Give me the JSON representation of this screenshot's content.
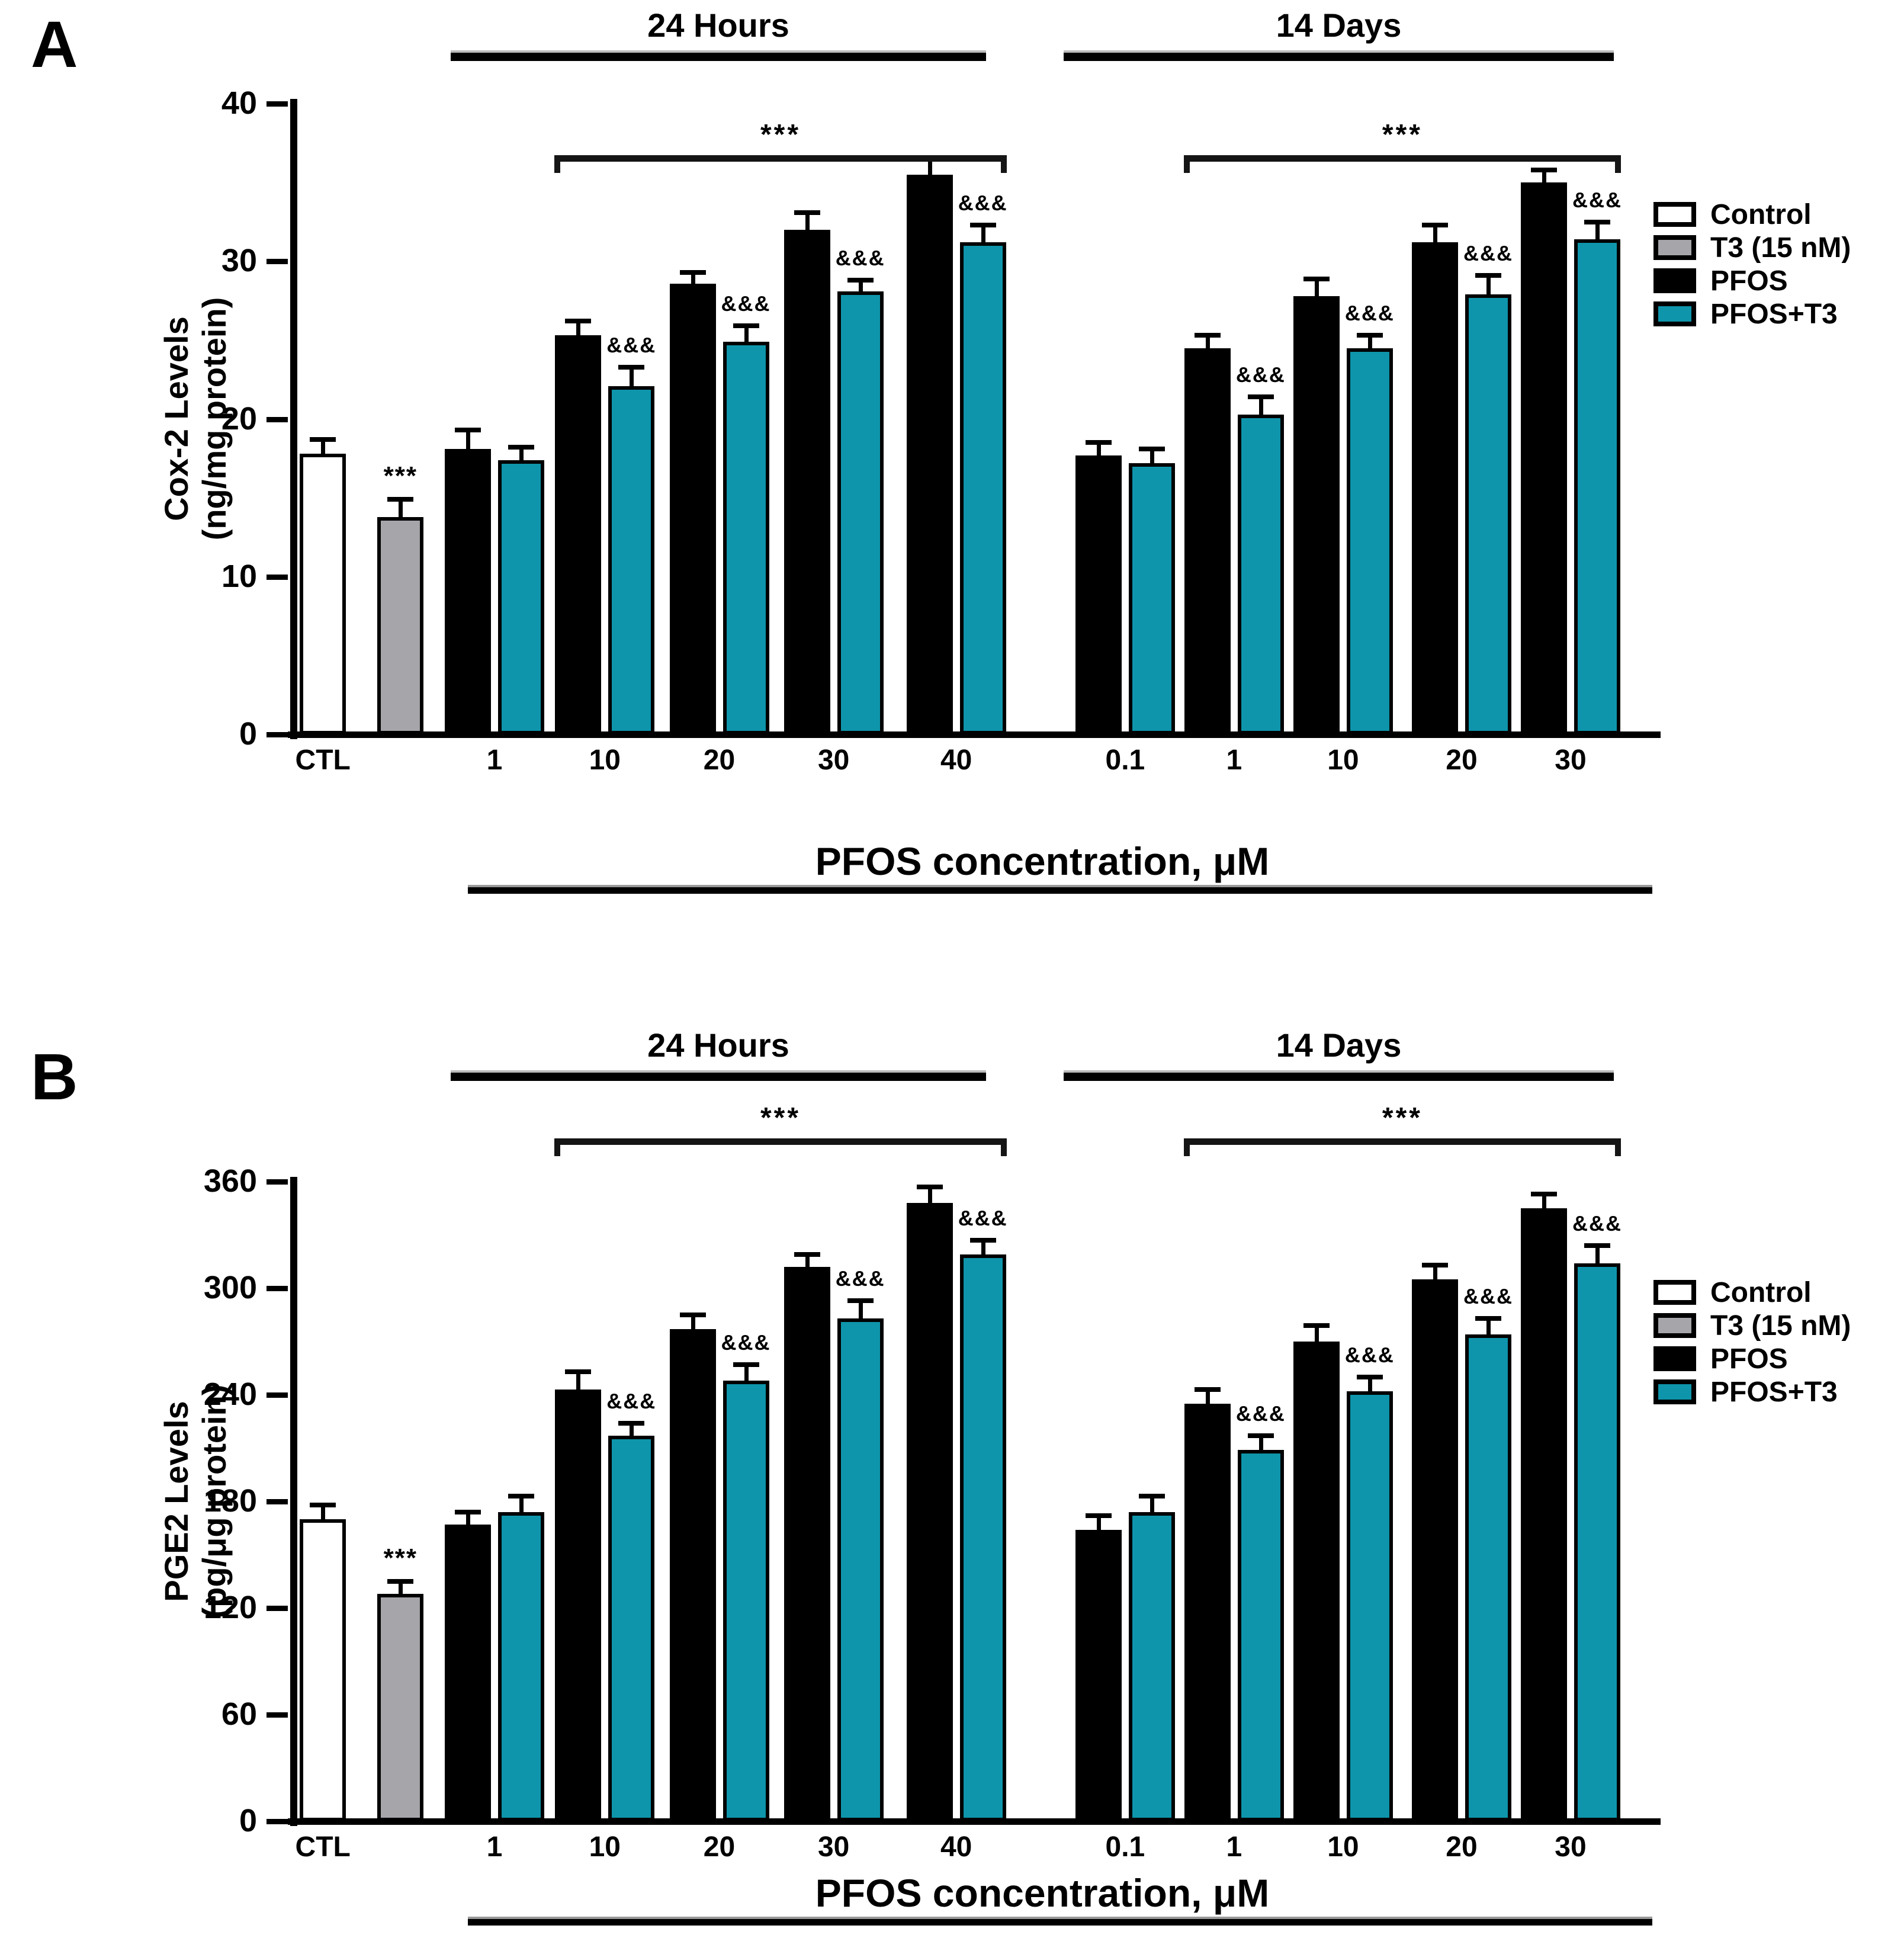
{
  "chart_data": [
    {
      "type": "bar",
      "panel_label": "A",
      "ylabel_line1": "Cox-2 Levels",
      "ylabel_line2": "(ng/mg protein)",
      "xlabel": "PFOS concentration, μM",
      "ylim": [
        0,
        40
      ],
      "yticks": [
        "0",
        "10",
        "20",
        "30",
        "40"
      ],
      "section_headers": [
        {
          "label": "24 Hours"
        },
        {
          "label": "14 Days"
        }
      ],
      "sig_brackets": [
        {
          "label": "***",
          "section": "24 Hours",
          "from_x": "10",
          "to_x": "40"
        },
        {
          "label": "***",
          "section": "14 Days",
          "from_x": "1",
          "to_x": "30"
        }
      ],
      "legend": [
        {
          "label": "Control",
          "color": "#ffffff"
        },
        {
          "label": "T3 (15 nM)",
          "color": "#a5a5aa"
        },
        {
          "label": "PFOS",
          "color": "#000000"
        },
        {
          "label": "PFOS+T3",
          "color": "#0e95ab"
        }
      ],
      "groups": [
        {
          "tick": "CTL",
          "section": "",
          "bars": [
            {
              "series": "Control",
              "value": 17.8,
              "err": 0.9,
              "annotation": ""
            }
          ]
        },
        {
          "tick": "",
          "section": "",
          "bars": [
            {
              "series": "T3 (15 nM)",
              "value": 13.8,
              "err": 1.1,
              "annotation": "***"
            }
          ]
        },
        {
          "tick": "1",
          "section": "24 Hours",
          "bars": [
            {
              "series": "PFOS",
              "value": 18.1,
              "err": 1.2,
              "annotation": ""
            },
            {
              "series": "PFOS+T3",
              "value": 17.4,
              "err": 0.8,
              "annotation": ""
            }
          ]
        },
        {
          "tick": "10",
          "section": "24 Hours",
          "bars": [
            {
              "series": "PFOS",
              "value": 25.3,
              "err": 0.9,
              "annotation": ""
            },
            {
              "series": "PFOS+T3",
              "value": 22.1,
              "err": 1.2,
              "annotation": "&&&"
            }
          ]
        },
        {
          "tick": "20",
          "section": "24 Hours",
          "bars": [
            {
              "series": "PFOS",
              "value": 28.6,
              "err": 0.7,
              "annotation": ""
            },
            {
              "series": "PFOS+T3",
              "value": 24.9,
              "err": 1.0,
              "annotation": "&&&"
            }
          ]
        },
        {
          "tick": "30",
          "section": "24 Hours",
          "bars": [
            {
              "series": "PFOS",
              "value": 32.0,
              "err": 1.1,
              "annotation": ""
            },
            {
              "series": "PFOS+T3",
              "value": 28.1,
              "err": 0.7,
              "annotation": "&&&"
            }
          ]
        },
        {
          "tick": "40",
          "section": "24 Hours",
          "bars": [
            {
              "series": "PFOS",
              "value": 35.5,
              "err": 1.1,
              "annotation": ""
            },
            {
              "series": "PFOS+T3",
              "value": 31.2,
              "err": 1.1,
              "annotation": "&&&"
            }
          ]
        },
        {
          "tick": "0.1",
          "section": "14 Days",
          "bars": [
            {
              "series": "PFOS",
              "value": 17.7,
              "err": 0.8,
              "annotation": ""
            },
            {
              "series": "PFOS+T3",
              "value": 17.2,
              "err": 0.9,
              "annotation": ""
            }
          ]
        },
        {
          "tick": "1",
          "section": "14 Days",
          "bars": [
            {
              "series": "PFOS",
              "value": 24.5,
              "err": 0.8,
              "annotation": ""
            },
            {
              "series": "PFOS+T3",
              "value": 20.3,
              "err": 1.1,
              "annotation": "&&&"
            }
          ]
        },
        {
          "tick": "10",
          "section": "14 Days",
          "bars": [
            {
              "series": "PFOS",
              "value": 27.8,
              "err": 1.1,
              "annotation": ""
            },
            {
              "series": "PFOS+T3",
              "value": 24.5,
              "err": 0.8,
              "annotation": "&&&"
            }
          ]
        },
        {
          "tick": "20",
          "section": "14 Days",
          "bars": [
            {
              "series": "PFOS",
              "value": 31.2,
              "err": 1.1,
              "annotation": ""
            },
            {
              "series": "PFOS+T3",
              "value": 27.9,
              "err": 1.2,
              "annotation": "&&&"
            }
          ]
        },
        {
          "tick": "30",
          "section": "14 Days",
          "bars": [
            {
              "series": "PFOS",
              "value": 35.0,
              "err": 0.8,
              "annotation": ""
            },
            {
              "series": "PFOS+T3",
              "value": 31.4,
              "err": 1.1,
              "annotation": "&&&"
            }
          ]
        }
      ]
    },
    {
      "type": "bar",
      "panel_label": "B",
      "ylabel_line1": "PGE2 Levels",
      "ylabel_line2": "(pg/μg protein)",
      "xlabel": "PFOS concentration, μM",
      "ylim": [
        0,
        360
      ],
      "yticks": [
        "0",
        "60",
        "120",
        "180",
        "240",
        "300",
        "360"
      ],
      "section_headers": [
        {
          "label": "24 Hours"
        },
        {
          "label": "14 Days"
        }
      ],
      "sig_brackets": [
        {
          "label": "***",
          "section": "24 Hours",
          "from_x": "10",
          "to_x": "40"
        },
        {
          "label": "***",
          "section": "14 Days",
          "from_x": "1",
          "to_x": "30"
        }
      ],
      "legend": [
        {
          "label": "Control",
          "color": "#ffffff"
        },
        {
          "label": "T3 (15 nM)",
          "color": "#a5a5aa"
        },
        {
          "label": "PFOS",
          "color": "#000000"
        },
        {
          "label": "PFOS+T3",
          "color": "#0e95ab"
        }
      ],
      "groups": [
        {
          "tick": "CTL",
          "section": "",
          "bars": [
            {
              "series": "Control",
              "value": 170,
              "err": 8,
              "annotation": ""
            }
          ]
        },
        {
          "tick": "",
          "section": "",
          "bars": [
            {
              "series": "T3 (15 nM)",
              "value": 128,
              "err": 7,
              "annotation": "***"
            }
          ]
        },
        {
          "tick": "1",
          "section": "24 Hours",
          "bars": [
            {
              "series": "PFOS",
              "value": 167,
              "err": 7,
              "annotation": ""
            },
            {
              "series": "PFOS+T3",
              "value": 174,
              "err": 9,
              "annotation": ""
            }
          ]
        },
        {
          "tick": "10",
          "section": "24 Hours",
          "bars": [
            {
              "series": "PFOS",
              "value": 243,
              "err": 10,
              "annotation": ""
            },
            {
              "series": "PFOS+T3",
              "value": 217,
              "err": 7,
              "annotation": "&&&"
            }
          ]
        },
        {
          "tick": "20",
          "section": "24 Hours",
          "bars": [
            {
              "series": "PFOS",
              "value": 277,
              "err": 8,
              "annotation": ""
            },
            {
              "series": "PFOS+T3",
              "value": 248,
              "err": 9,
              "annotation": "&&&"
            }
          ]
        },
        {
          "tick": "30",
          "section": "24 Hours",
          "bars": [
            {
              "series": "PFOS",
              "value": 312,
              "err": 7,
              "annotation": ""
            },
            {
              "series": "PFOS+T3",
              "value": 283,
              "err": 10,
              "annotation": "&&&"
            }
          ]
        },
        {
          "tick": "40",
          "section": "24 Hours",
          "bars": [
            {
              "series": "PFOS",
              "value": 348,
              "err": 9,
              "annotation": ""
            },
            {
              "series": "PFOS+T3",
              "value": 319,
              "err": 8,
              "annotation": "&&&"
            }
          ]
        },
        {
          "tick": "0.1",
          "section": "14 Days",
          "bars": [
            {
              "series": "PFOS",
              "value": 164,
              "err": 8,
              "annotation": ""
            },
            {
              "series": "PFOS+T3",
              "value": 174,
              "err": 9,
              "annotation": ""
            }
          ]
        },
        {
          "tick": "1",
          "section": "14 Days",
          "bars": [
            {
              "series": "PFOS",
              "value": 235,
              "err": 8,
              "annotation": ""
            },
            {
              "series": "PFOS+T3",
              "value": 209,
              "err": 8,
              "annotation": "&&&"
            }
          ]
        },
        {
          "tick": "10",
          "section": "14 Days",
          "bars": [
            {
              "series": "PFOS",
              "value": 270,
              "err": 9,
              "annotation": ""
            },
            {
              "series": "PFOS+T3",
              "value": 242,
              "err": 8,
              "annotation": "&&&"
            }
          ]
        },
        {
          "tick": "20",
          "section": "14 Days",
          "bars": [
            {
              "series": "PFOS",
              "value": 305,
              "err": 8,
              "annotation": ""
            },
            {
              "series": "PFOS+T3",
              "value": 274,
              "err": 9,
              "annotation": "&&&"
            }
          ]
        },
        {
          "tick": "30",
          "section": "14 Days",
          "bars": [
            {
              "series": "PFOS",
              "value": 345,
              "err": 8,
              "annotation": ""
            },
            {
              "series": "PFOS+T3",
              "value": 314,
              "err": 10,
              "annotation": "&&&"
            }
          ]
        }
      ]
    }
  ]
}
